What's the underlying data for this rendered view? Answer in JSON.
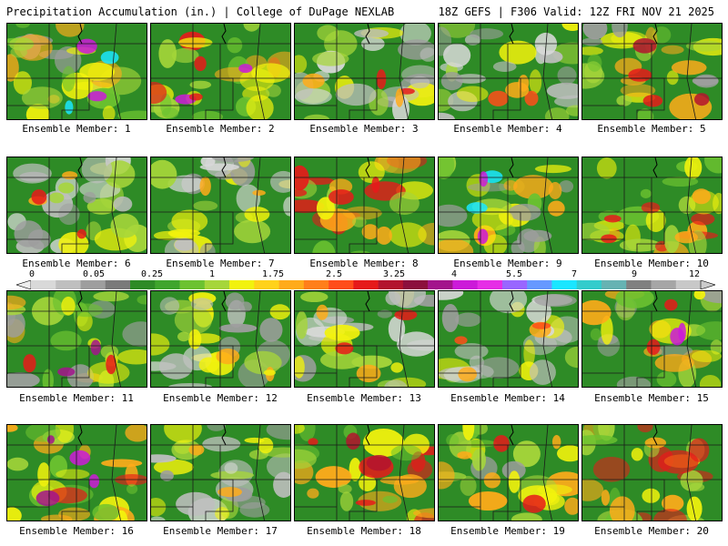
{
  "header": {
    "left": "Precipitation Accumulation (in.) | College of DuPage NEXLAB",
    "right": "18Z GEFS | F306 Valid: 12Z FRI NOV 21 2025"
  },
  "panels": [
    {
      "label": "Ensemble Member: 1"
    },
    {
      "label": "Ensemble Member: 2"
    },
    {
      "label": "Ensemble Member: 3"
    },
    {
      "label": "Ensemble Member: 4"
    },
    {
      "label": "Ensemble Member: 5"
    },
    {
      "label": "Ensemble Member: 6"
    },
    {
      "label": "Ensemble Member: 7"
    },
    {
      "label": "Ensemble Member: 8"
    },
    {
      "label": "Ensemble Member: 9"
    },
    {
      "label": "Ensemble Member: 10"
    },
    {
      "label": "Ensemble Member: 11"
    },
    {
      "label": "Ensemble Member: 12"
    },
    {
      "label": "Ensemble Member: 13"
    },
    {
      "label": "Ensemble Member: 14"
    },
    {
      "label": "Ensemble Member: 15"
    },
    {
      "label": "Ensemble Member: 16"
    },
    {
      "label": "Ensemble Member: 17"
    },
    {
      "label": "Ensemble Member: 18"
    },
    {
      "label": "Ensemble Member: 19"
    },
    {
      "label": "Ensemble Member: 20"
    }
  ],
  "colorbar": {
    "tick_labels": [
      "0",
      "0.05",
      "0.25",
      "1",
      "1.75",
      "2.5",
      "3.25",
      "4",
      "5.5",
      "7",
      "9",
      "12"
    ],
    "colors": [
      "#d9d9d9",
      "#bfbfbf",
      "#9e9e9e",
      "#7a7a7a",
      "#2e8b26",
      "#3fa52d",
      "#6cc230",
      "#a6d63a",
      "#f2f20d",
      "#ffd21a",
      "#ffab1a",
      "#ff7f1a",
      "#ff4d1a",
      "#e61a1a",
      "#b3142e",
      "#8c0f3d",
      "#a3148c",
      "#cc1ad9",
      "#e62ee6",
      "#9966ff",
      "#6699ff",
      "#1ae6ff",
      "#33cccc",
      "#66b3b3",
      "#808080",
      "#a6a6a6",
      "#c8c8c8"
    ]
  }
}
